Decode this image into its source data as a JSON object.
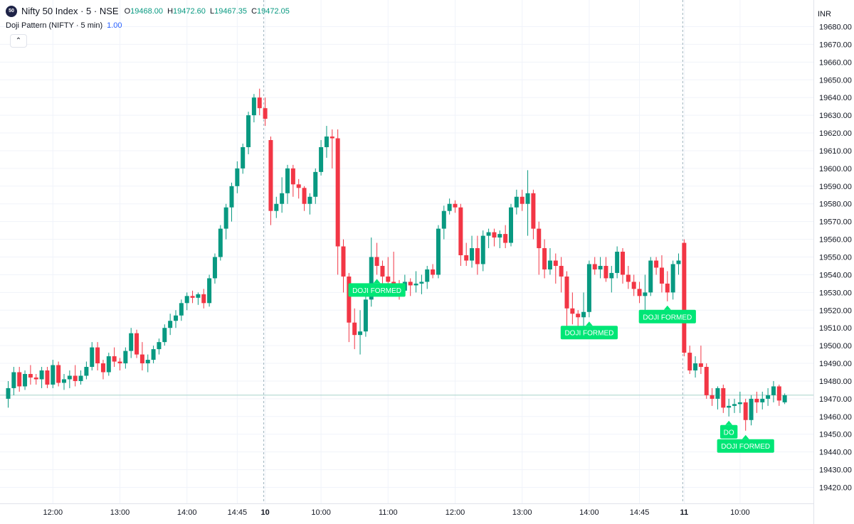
{
  "header": {
    "symbol_badge": "50",
    "title": "Nifty 50 Index · 5 · NSE",
    "ohlc": {
      "o_label": "O",
      "o_value": "19468.00",
      "h_label": "H",
      "h_value": "19472.60",
      "l_label": "L",
      "l_value": "19467.35",
      "c_label": "C",
      "c_value": "19472.05"
    },
    "indicator_name": "Doji Pattern (NIFTY · 5 min)",
    "indicator_value": "1.00",
    "collapse_icon": "chevron-up-icon"
  },
  "chart_data": {
    "type": "candlestick",
    "currency": "INR",
    "ylim": [
      19410,
      19690
    ],
    "yticks": [
      19420,
      19430,
      19440,
      19450,
      19460,
      19470,
      19480,
      19490,
      19500,
      19510,
      19520,
      19530,
      19540,
      19550,
      19560,
      19570,
      19580,
      19590,
      19600,
      19610,
      19620,
      19630,
      19640,
      19650,
      19660,
      19670,
      19680
    ],
    "xticks": [
      {
        "i": 8,
        "label": "12:00",
        "bold": false
      },
      {
        "i": 20,
        "label": "13:00",
        "bold": false
      },
      {
        "i": 32,
        "label": "14:00",
        "bold": false
      },
      {
        "i": 41,
        "label": "14:45",
        "bold": false
      },
      {
        "i": 46,
        "label": "10",
        "bold": true
      },
      {
        "i": 56,
        "label": "10:00",
        "bold": false
      },
      {
        "i": 68,
        "label": "11:00",
        "bold": false
      },
      {
        "i": 80,
        "label": "12:00",
        "bold": false
      },
      {
        "i": 92,
        "label": "13:00",
        "bold": false
      },
      {
        "i": 104,
        "label": "14:00",
        "bold": false
      },
      {
        "i": 113,
        "label": "14:45",
        "bold": false
      },
      {
        "i": 121,
        "label": "11",
        "bold": true
      },
      {
        "i": 131,
        "label": "10:00",
        "bold": false
      }
    ],
    "session_breaks": [
      46,
      121
    ],
    "last_price": 19472.05,
    "colors": {
      "up": "#089981",
      "down": "#f23645",
      "label_bg": "#00e676",
      "label_text": "#ffffff",
      "grid": "#f0f3fa"
    },
    "candles": [
      [
        19470,
        19480,
        19465,
        19476
      ],
      [
        19476,
        19488,
        19472,
        19485
      ],
      [
        19485,
        19488,
        19474,
        19477
      ],
      [
        19477,
        19486,
        19475,
        19484
      ],
      [
        19484,
        19489,
        19478,
        19482
      ],
      [
        19482,
        19484,
        19478,
        19481
      ],
      [
        19481,
        19488,
        19476,
        19486
      ],
      [
        19486,
        19488,
        19476,
        19478
      ],
      [
        19478,
        19492,
        19476,
        19489
      ],
      [
        19489,
        19491,
        19477,
        19479
      ],
      [
        19479,
        19484,
        19475,
        19481
      ],
      [
        19481,
        19486,
        19476,
        19483
      ],
      [
        19483,
        19489,
        19477,
        19480
      ],
      [
        19480,
        19486,
        19478,
        19483
      ],
      [
        19483,
        19491,
        19481,
        19488
      ],
      [
        19488,
        19502,
        19486,
        19499
      ],
      [
        19499,
        19502,
        19486,
        19490
      ],
      [
        19490,
        19492,
        19481,
        19485
      ],
      [
        19485,
        19496,
        19483,
        19494
      ],
      [
        19494,
        19499,
        19488,
        19491
      ],
      [
        19491,
        19493,
        19486,
        19490
      ],
      [
        19490,
        19499,
        19487,
        19497
      ],
      [
        19497,
        19510,
        19493,
        19507
      ],
      [
        19507,
        19509,
        19493,
        19495
      ],
      [
        19495,
        19502,
        19486,
        19490
      ],
      [
        19490,
        19495,
        19485,
        19492
      ],
      [
        19492,
        19500,
        19490,
        19498
      ],
      [
        19498,
        19504,
        19495,
        19502
      ],
      [
        19502,
        19512,
        19500,
        19510
      ],
      [
        19510,
        19518,
        19506,
        19514
      ],
      [
        19514,
        19520,
        19510,
        19517
      ],
      [
        19517,
        19526,
        19514,
        19524
      ],
      [
        19524,
        19530,
        19520,
        19528
      ],
      [
        19528,
        19531,
        19524,
        19527
      ],
      [
        19527,
        19530,
        19523,
        19529
      ],
      [
        19529,
        19532,
        19521,
        19524
      ],
      [
        19524,
        19540,
        19522,
        19538
      ],
      [
        19538,
        19552,
        19535,
        19550
      ],
      [
        19550,
        19568,
        19548,
        19566
      ],
      [
        19566,
        19580,
        19560,
        19578
      ],
      [
        19578,
        19592,
        19570,
        19590
      ],
      [
        19590,
        19604,
        19586,
        19600
      ],
      [
        19600,
        19614,
        19597,
        19612
      ],
      [
        19612,
        19632,
        19608,
        19630
      ],
      [
        19630,
        19642,
        19626,
        19640
      ],
      [
        19640,
        19645,
        19630,
        19634
      ],
      [
        19634,
        19640,
        19624,
        19628
      ],
      [
        19616,
        19618,
        19568,
        19576
      ],
      [
        19576,
        19584,
        19572,
        19580
      ],
      [
        19580,
        19595,
        19575,
        19586
      ],
      [
        19586,
        19602,
        19580,
        19600
      ],
      [
        19600,
        19602,
        19584,
        19591
      ],
      [
        19591,
        19594,
        19583,
        19589
      ],
      [
        19589,
        19590,
        19576,
        19580
      ],
      [
        19580,
        19586,
        19574,
        19584
      ],
      [
        19584,
        19600,
        19580,
        19598
      ],
      [
        19598,
        19616,
        19596,
        19612
      ],
      [
        19612,
        19624,
        19606,
        19618
      ],
      [
        19618,
        19622,
        19600,
        19617
      ],
      [
        19617,
        19622,
        19540,
        19556
      ],
      [
        19556,
        19560,
        19530,
        19539
      ],
      [
        19539,
        19541,
        19502,
        19513
      ],
      [
        19513,
        19521,
        19498,
        19506
      ],
      [
        19506,
        19520,
        19495,
        19508
      ],
      [
        19508,
        19530,
        19505,
        19526
      ],
      [
        19526,
        19561,
        19522,
        19550
      ],
      [
        19550,
        19558,
        19540,
        19545
      ],
      [
        19545,
        19548,
        19532,
        19539
      ],
      [
        19539,
        19550,
        19530,
        19536
      ],
      [
        19536,
        19553,
        19533,
        19535
      ],
      [
        19535,
        19537,
        19526,
        19531
      ],
      [
        19531,
        19540,
        19528,
        19536
      ],
      [
        19536,
        19538,
        19528,
        19534
      ],
      [
        19534,
        19542,
        19530,
        19535
      ],
      [
        19535,
        19540,
        19529,
        19536
      ],
      [
        19536,
        19545,
        19532,
        19543
      ],
      [
        19543,
        19546,
        19538,
        19540
      ],
      [
        19540,
        19568,
        19538,
        19566
      ],
      [
        19566,
        19579,
        19560,
        19576
      ],
      [
        19576,
        19583,
        19574,
        19580
      ],
      [
        19580,
        19582,
        19575,
        19578
      ],
      [
        19578,
        19580,
        19545,
        19551
      ],
      [
        19551,
        19558,
        19545,
        19548
      ],
      [
        19548,
        19562,
        19544,
        19555
      ],
      [
        19555,
        19562,
        19540,
        19546
      ],
      [
        19546,
        19565,
        19542,
        19562
      ],
      [
        19562,
        19566,
        19555,
        19564
      ],
      [
        19564,
        19566,
        19556,
        19561
      ],
      [
        19561,
        19565,
        19555,
        19563
      ],
      [
        19563,
        19568,
        19555,
        19558
      ],
      [
        19558,
        19580,
        19556,
        19578
      ],
      [
        19578,
        19588,
        19574,
        19584
      ],
      [
        19584,
        19588,
        19576,
        19580
      ],
      [
        19580,
        19599,
        19562,
        19586
      ],
      [
        19586,
        19588,
        19560,
        19566
      ],
      [
        19566,
        19570,
        19540,
        19555
      ],
      [
        19555,
        19560,
        19538,
        19543
      ],
      [
        19543,
        19555,
        19540,
        19548
      ],
      [
        19548,
        19552,
        19535,
        19545
      ],
      [
        19545,
        19550,
        19530,
        19539
      ],
      [
        19539,
        19542,
        19510,
        19521
      ],
      [
        19521,
        19530,
        19512,
        19518
      ],
      [
        19518,
        19520,
        19505,
        19516
      ],
      [
        19516,
        19530,
        19508,
        19519
      ],
      [
        19519,
        19548,
        19516,
        19546
      ],
      [
        19546,
        19550,
        19540,
        19543
      ],
      [
        19543,
        19550,
        19538,
        19545
      ],
      [
        19545,
        19550,
        19536,
        19538
      ],
      [
        19538,
        19545,
        19530,
        19541
      ],
      [
        19541,
        19556,
        19538,
        19553
      ],
      [
        19553,
        19555,
        19535,
        19540
      ],
      [
        19540,
        19545,
        19532,
        19536
      ],
      [
        19536,
        19540,
        19528,
        19532
      ],
      [
        19532,
        19536,
        19524,
        19528
      ],
      [
        19528,
        19540,
        19520,
        19530
      ],
      [
        19530,
        19550,
        19528,
        19548
      ],
      [
        19548,
        19550,
        19540,
        19544
      ],
      [
        19544,
        19551,
        19530,
        19535
      ],
      [
        19535,
        19542,
        19525,
        19530
      ],
      [
        19530,
        19548,
        19526,
        19546
      ],
      [
        19546,
        19552,
        19540,
        19548
      ],
      [
        19558,
        19560,
        19494,
        19496
      ],
      [
        19496,
        19500,
        19484,
        19486
      ],
      [
        19486,
        19494,
        19482,
        19490
      ],
      [
        19490,
        19500,
        19484,
        19488
      ],
      [
        19488,
        19490,
        19470,
        19472
      ],
      [
        19472,
        19476,
        19466,
        19470
      ],
      [
        19470,
        19477,
        19464,
        19476
      ],
      [
        19476,
        19478,
        19462,
        19465
      ],
      [
        19465,
        19470,
        19460,
        19466
      ],
      [
        19466,
        19470,
        19462,
        19467
      ],
      [
        19467,
        19474,
        19462,
        19468
      ],
      [
        19468,
        19470,
        19452,
        19458
      ],
      [
        19458,
        19472,
        19455,
        19470
      ],
      [
        19470,
        19474,
        19462,
        19468
      ],
      [
        19468,
        19474,
        19464,
        19470
      ],
      [
        19470,
        19476,
        19466,
        19472
      ],
      [
        19472,
        19480,
        19468,
        19477
      ],
      [
        19477,
        19478,
        19466,
        19469
      ],
      [
        19468,
        19473,
        19467,
        19472
      ]
    ],
    "doji_labels": [
      {
        "i": 66,
        "label": "DOJI FORMED"
      },
      {
        "i": 104,
        "label": "DOJI FORMED"
      },
      {
        "i": 118,
        "label": "DOJI FORMED"
      },
      {
        "i": 129,
        "label": "DO"
      },
      {
        "i": 132,
        "label": "DOJI FORMED"
      }
    ]
  }
}
